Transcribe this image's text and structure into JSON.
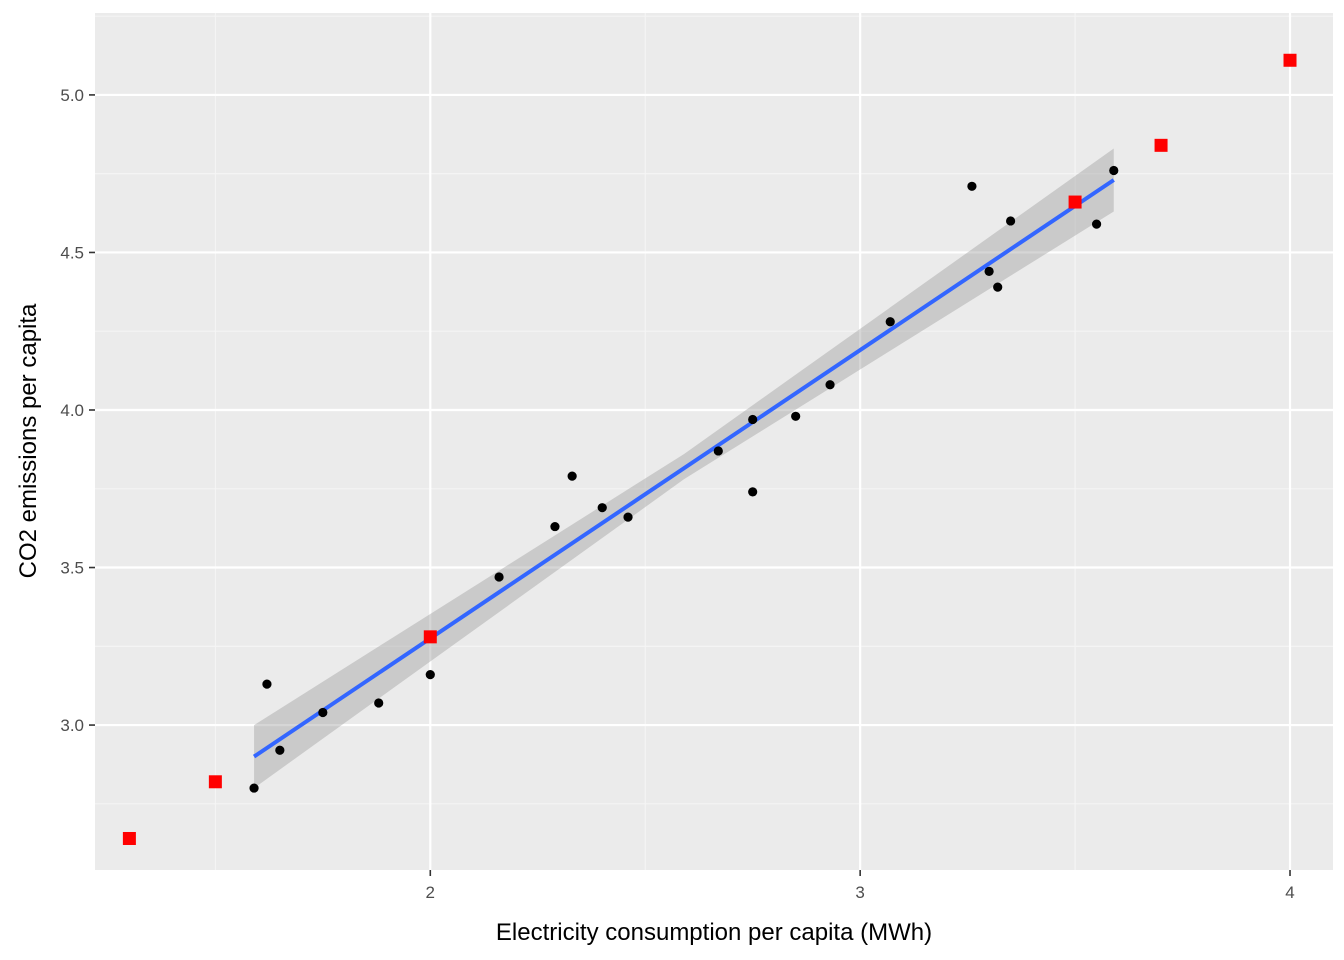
{
  "colors": {
    "panel": "#ebebeb",
    "grid_major": "#ffffff",
    "grid_minor": "#f5f5f5",
    "points": "#000000",
    "highlight": "#ff0000",
    "fit_line": "#3366ff",
    "ribbon": "#999999"
  },
  "chart_data": {
    "type": "scatter",
    "xlabel": "Electricity consumption per capita (MWh)",
    "ylabel": "CO2 emissions per capita",
    "xlim": [
      1.22,
      4.1
    ],
    "ylim": [
      2.54,
      5.26
    ],
    "x_ticks": [
      2,
      3,
      4
    ],
    "x_tick_labels": [
      "2",
      "3",
      "4"
    ],
    "y_ticks": [
      3.0,
      3.5,
      4.0,
      4.5,
      5.0
    ],
    "y_tick_labels": [
      "3.0",
      "3.5",
      "4.0",
      "4.5",
      "5.0"
    ],
    "grid": true,
    "series": [
      {
        "marker": "circle",
        "color": "#000000",
        "points": [
          [
            1.59,
            2.8
          ],
          [
            1.62,
            3.13
          ],
          [
            1.65,
            2.92
          ],
          [
            1.75,
            3.04
          ],
          [
            1.88,
            3.07
          ],
          [
            2.0,
            3.16
          ],
          [
            2.16,
            3.47
          ],
          [
            2.29,
            3.63
          ],
          [
            2.33,
            3.79
          ],
          [
            2.4,
            3.69
          ],
          [
            2.46,
            3.66
          ],
          [
            2.67,
            3.87
          ],
          [
            2.75,
            3.97
          ],
          [
            2.75,
            3.74
          ],
          [
            2.85,
            3.98
          ],
          [
            2.93,
            4.08
          ],
          [
            3.07,
            4.28
          ],
          [
            3.26,
            4.71
          ],
          [
            3.3,
            4.44
          ],
          [
            3.32,
            4.39
          ],
          [
            3.35,
            4.6
          ],
          [
            3.55,
            4.59
          ],
          [
            3.59,
            4.76
          ]
        ]
      },
      {
        "marker": "square",
        "color": "#ff0000",
        "points": [
          [
            1.3,
            2.64
          ],
          [
            1.5,
            2.82
          ],
          [
            2.0,
            3.28
          ],
          [
            3.5,
            4.66
          ],
          [
            3.7,
            4.84
          ],
          [
            4.0,
            5.11
          ]
        ]
      }
    ],
    "fit": {
      "method": "lm",
      "x_range": [
        1.59,
        3.59
      ],
      "line": [
        [
          1.59,
          2.9
        ],
        [
          3.59,
          4.73
        ]
      ],
      "ribbon_lower": [
        [
          1.59,
          2.8
        ],
        [
          2.59,
          3.78
        ],
        [
          3.59,
          4.63
        ]
      ],
      "ribbon_upper": [
        [
          1.59,
          3.0
        ],
        [
          2.59,
          3.86
        ],
        [
          3.59,
          4.83
        ]
      ]
    }
  }
}
